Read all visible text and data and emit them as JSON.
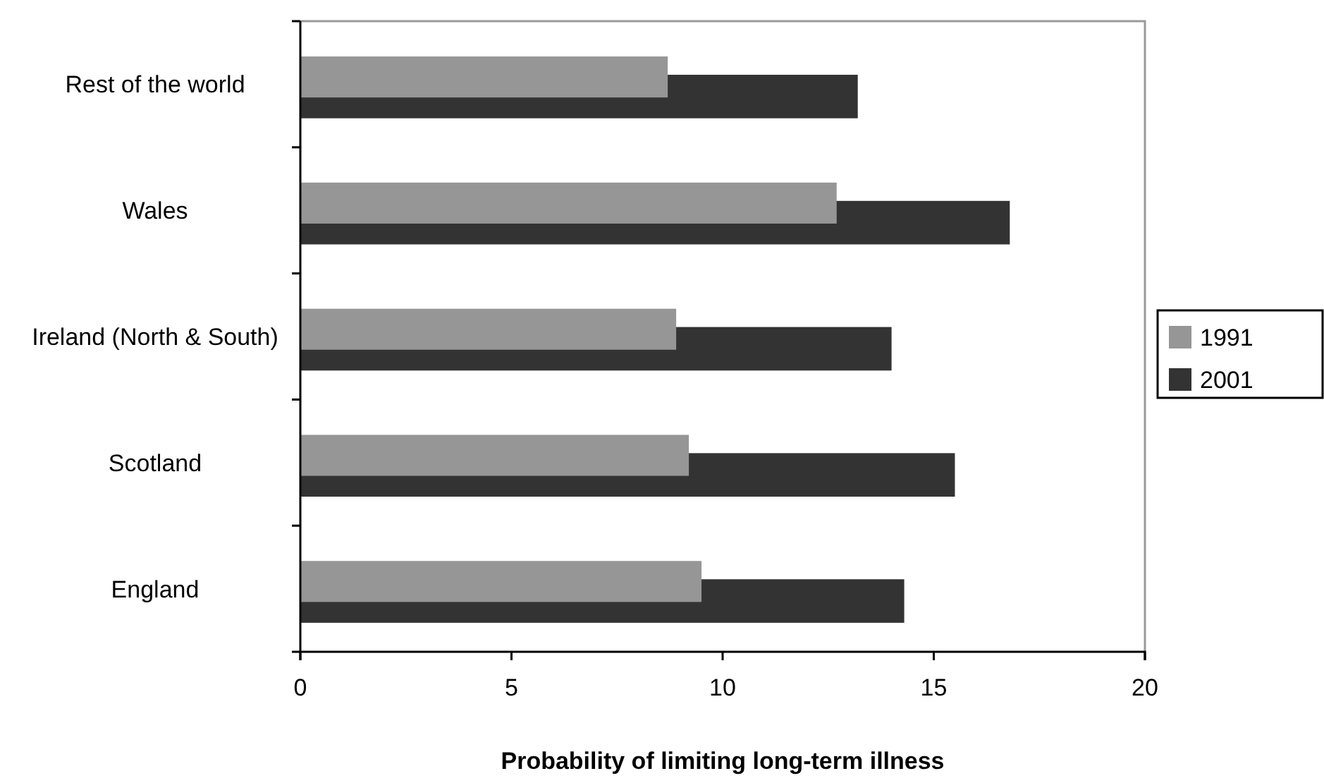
{
  "chart_data": {
    "type": "bar",
    "orientation": "horizontal",
    "xlabel": "Probability of limiting long-term illness",
    "categories": [
      "Rest of the world",
      "Wales",
      "Ireland (North & South)",
      "Scotland",
      "England"
    ],
    "series": [
      {
        "name": "1991",
        "color": "#969696",
        "values": [
          8.7,
          12.7,
          8.9,
          9.2,
          9.5
        ]
      },
      {
        "name": "2001",
        "color": "#333333",
        "values": [
          13.2,
          16.8,
          14.0,
          15.5,
          14.3
        ]
      }
    ],
    "xlim": [
      0,
      20
    ],
    "xticks": [
      0,
      5,
      10,
      15,
      20
    ],
    "grid": false,
    "legend": "right"
  }
}
